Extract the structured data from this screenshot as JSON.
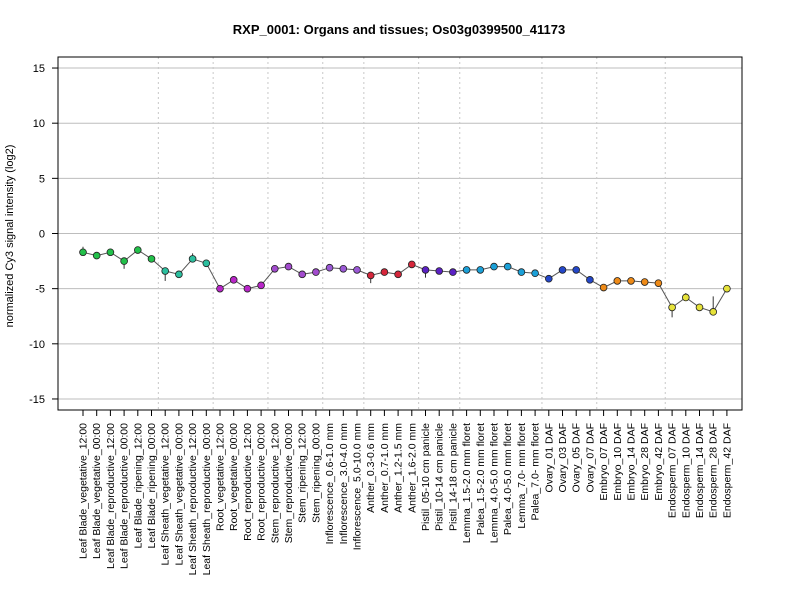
{
  "chart_data": {
    "type": "line",
    "title": "RXP_0001: Organs and tissues; Os03g0399500_41173",
    "xlabel": "",
    "ylabel": "normalized Cy3 signal intensity (log2)",
    "ylim": [
      -16,
      16
    ],
    "yticks": [
      -15,
      -10,
      -5,
      0,
      5,
      10,
      15
    ],
    "grid": "horizontal lines at y ticks; dotted vertical separators between sample groups",
    "categories": [
      "Leaf Blade_vegetative_12:00",
      "Leaf Blade_vegetative_00:00",
      "Leaf Blade_reproductive_12:00",
      "Leaf Blade_reproductive_00:00",
      "Leaf Blade_ripening_12:00",
      "Leaf Blade_ripening_00:00",
      "Leaf Sheath_vegetative_12:00",
      "Leaf Sheath_vegetative_00:00",
      "Leaf Sheath_reproductive_12:00",
      "Leaf Sheath_reproductive_00:00",
      "Root_vegetative_12:00",
      "Root_vegetative_00:00",
      "Root_reproductive_12:00",
      "Root_reproductive_00:00",
      "Stem_reproductive_12:00",
      "Stem_reproductive_00:00",
      "Stem_ripening_12:00",
      "Stem_ripening_00:00",
      "Inflorescence_0.6-1.0 mm",
      "Inflorescence_3.0-4.0 mm",
      "Inflorescence_5.0-10.0 mm",
      "Anther_0.3-0.6 mm",
      "Anther_0.7-1.0 mm",
      "Anther_1.2-1.5 mm",
      "Anther_1.6-2.0 mm",
      "Pistil_05-10 cm panicle",
      "Pistil_10-14 cm panicle",
      "Pistil_14-18 cm panicle",
      "Lemma_1.5-2.0 mm floret",
      "Palea_1.5-2.0 mm floret",
      "Lemma_4.0-5.0 mm floret",
      "Palea_4.0-5.0 mm floret",
      "Lemma_7.0- mm floret",
      "Palea_7.0- mm floret",
      "Ovary_01 DAF",
      "Ovary_03 DAF",
      "Ovary_05 DAF",
      "Ovary_07 DAF",
      "Embryo_07 DAF",
      "Embryo_10 DAF",
      "Embryo_14 DAF",
      "Embryo_28 DAF",
      "Embryo_42 DAF",
      "Endosperm_07 DAF",
      "Endosperm_10 DAF",
      "Endosperm_14 DAF",
      "Endosperm_28 DAF",
      "Endosperm_42 DAF"
    ],
    "values": [
      -1.7,
      -2.0,
      -1.7,
      -2.5,
      -1.5,
      -2.3,
      -3.4,
      -3.7,
      -2.3,
      -2.7,
      -5.0,
      -4.2,
      -5.0,
      -4.7,
      -3.2,
      -3.0,
      -3.7,
      -3.5,
      -3.1,
      -3.2,
      -3.3,
      -3.8,
      -3.5,
      -3.7,
      -2.8,
      -3.3,
      -3.4,
      -3.5,
      -3.3,
      -3.3,
      -3.0,
      -3.0,
      -3.5,
      -3.6,
      -4.1,
      -3.3,
      -3.3,
      -4.2,
      -4.9,
      -4.3,
      -4.3,
      -4.4,
      -4.5,
      -6.7,
      -5.8,
      -6.7,
      -7.1,
      -5.0
    ],
    "err_low": [
      -1.2,
      null,
      null,
      -3.2,
      null,
      -2.0,
      -4.3,
      null,
      -1.8,
      null,
      null,
      null,
      null,
      null,
      null,
      null,
      null,
      null,
      null,
      null,
      null,
      -4.5,
      null,
      null,
      null,
      -4.0,
      null,
      null,
      null,
      null,
      null,
      null,
      null,
      null,
      null,
      null,
      null,
      null,
      null,
      null,
      null,
      null,
      null,
      -7.6,
      -5.4,
      null,
      -5.7,
      null
    ],
    "group_colors": [
      "#22c04a",
      "#22c04a",
      "#22c04a",
      "#22c04a",
      "#22c04a",
      "#22c04a",
      "#2bbf9e",
      "#2bbf9e",
      "#2bbf9e",
      "#2bbf9e",
      "#b825c8",
      "#b825c8",
      "#b825c8",
      "#b825c8",
      "#a24bcd",
      "#a24bcd",
      "#a24bcd",
      "#a24bcd",
      "#9b59d6",
      "#9b59d6",
      "#9b59d6",
      "#d6263b",
      "#d6263b",
      "#d6263b",
      "#d6263b",
      "#5b21c4",
      "#5b21c4",
      "#5b21c4",
      "#1ba0d8",
      "#1ba0d8",
      "#1ba0d8",
      "#1ba0d8",
      "#1ba0d8",
      "#1ba0d8",
      "#2447c9",
      "#2447c9",
      "#2447c9",
      "#2447c9",
      "#ee8a17",
      "#ee8a17",
      "#ee8a17",
      "#ee8a17",
      "#ee8a17",
      "#e6e23a",
      "#e6e23a",
      "#e6e23a",
      "#e6e23a",
      "#e6e23a"
    ],
    "separators_after_index": [
      5,
      9,
      13,
      17,
      20,
      24,
      27,
      33,
      37,
      42
    ]
  }
}
